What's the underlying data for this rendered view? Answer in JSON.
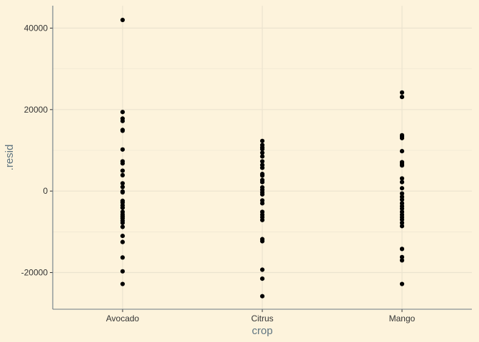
{
  "chart_data": {
    "type": "scatter",
    "title": "",
    "xlabel": "crop",
    "ylabel": ".resid",
    "categories": [
      "Avocado",
      "Citrus",
      "Mango"
    ],
    "ylim": [
      -29000,
      45500
    ],
    "y_ticks": [
      -20000,
      0,
      20000,
      40000
    ],
    "y_tick_labels": [
      "-20000",
      "0",
      "20000",
      "40000"
    ],
    "grid": true,
    "legend": "none",
    "colors": {
      "background": "#fdf3dc",
      "panel": "#fdf3dc",
      "grid": "#ebe3cf",
      "axis_line": "#6b7a85",
      "point": "#000000",
      "axis_title": "#5f7480",
      "tick_label": "#333333"
    },
    "series": [
      {
        "category": "Avocado",
        "values": [
          42000,
          19400,
          17800,
          17200,
          15000,
          14800,
          10200,
          7300,
          6800,
          5000,
          3900,
          1900,
          1000,
          -100,
          -300,
          -2400,
          -2800,
          -3500,
          -4100,
          -5100,
          -5700,
          -6200,
          -6700,
          -7300,
          -7800,
          -8800,
          -11000,
          -12500,
          -16300,
          -19700,
          -22800
        ]
      },
      {
        "category": "Citrus",
        "values": [
          12300,
          11300,
          10700,
          10300,
          9400,
          8500,
          7300,
          6400,
          5700,
          4200,
          3800,
          2700,
          2200,
          900,
          300,
          -300,
          -800,
          -2300,
          -3000,
          -5100,
          -5800,
          -6400,
          -7100,
          -11800,
          -12300,
          -19300,
          -21500,
          -25800
        ]
      },
      {
        "category": "Mango",
        "values": [
          24200,
          23100,
          13700,
          13400,
          13000,
          9800,
          7100,
          6600,
          6300,
          3100,
          2200,
          700,
          -600,
          -1400,
          -2100,
          -3000,
          -3700,
          -4300,
          -5100,
          -5800,
          -6400,
          -7000,
          -7800,
          -8600,
          -14200,
          -16200,
          -17000,
          -22800
        ]
      }
    ]
  }
}
